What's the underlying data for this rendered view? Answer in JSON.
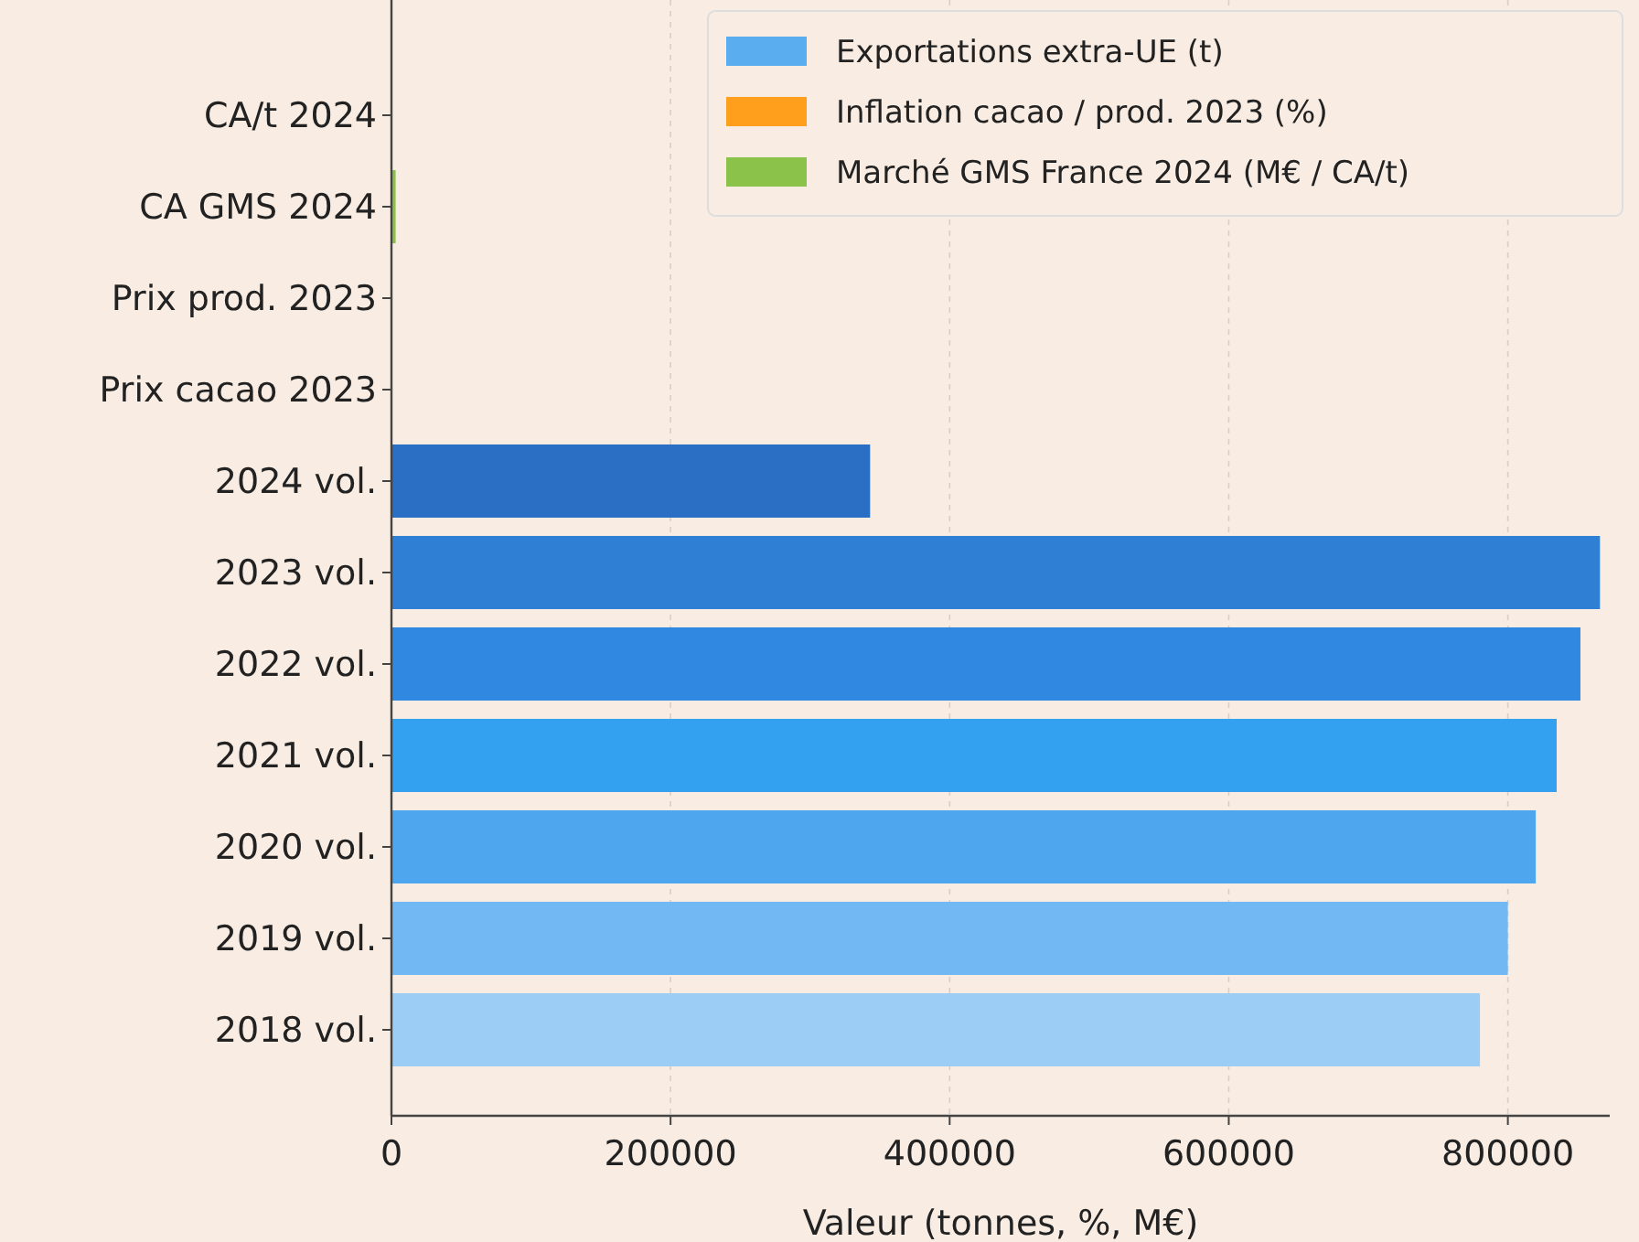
{
  "chart_data": {
    "type": "bar",
    "orientation": "horizontal",
    "xlabel": "Valeur (tonnes, %, M€)",
    "categories": [
      "CA/t 2024",
      "CA GMS 2024",
      "Prix prod. 2023",
      "Prix cacao 2023",
      "2024 vol.",
      "2023 vol.",
      "2022 vol.",
      "2021 vol.",
      "2020 vol.",
      "2019 vol.",
      "2018 vol."
    ],
    "series": [
      {
        "name": "Exportations extra-UE (t)",
        "color": "#5aaef0",
        "colors": [
          null,
          null,
          null,
          null,
          "#2a6fc4",
          "#2f7fd4",
          "#3088e0",
          "#33a0f0",
          "#4ea6ee",
          "#72b8f2",
          "#9ccdf5"
        ],
        "values": [
          null,
          null,
          null,
          null,
          343000,
          866000,
          852000,
          835000,
          820000,
          800000,
          780000
        ]
      },
      {
        "name": "Inflation cacao / prod. 2023 (%)",
        "color": "#ff9f1c",
        "values": [
          null,
          null,
          null,
          null,
          null,
          null,
          null,
          null,
          null,
          null,
          null
        ]
      },
      {
        "name": "Marché GMS France 2024 (M€ / CA/t)",
        "color": "#8bc34a",
        "values": [
          null,
          3000,
          null,
          null,
          null,
          null,
          null,
          null,
          null,
          null,
          null
        ]
      }
    ],
    "xlim": [
      0,
      873000
    ],
    "xticks": [
      0,
      200000,
      400000,
      600000,
      800000
    ],
    "grid": "x",
    "legend": "top"
  }
}
